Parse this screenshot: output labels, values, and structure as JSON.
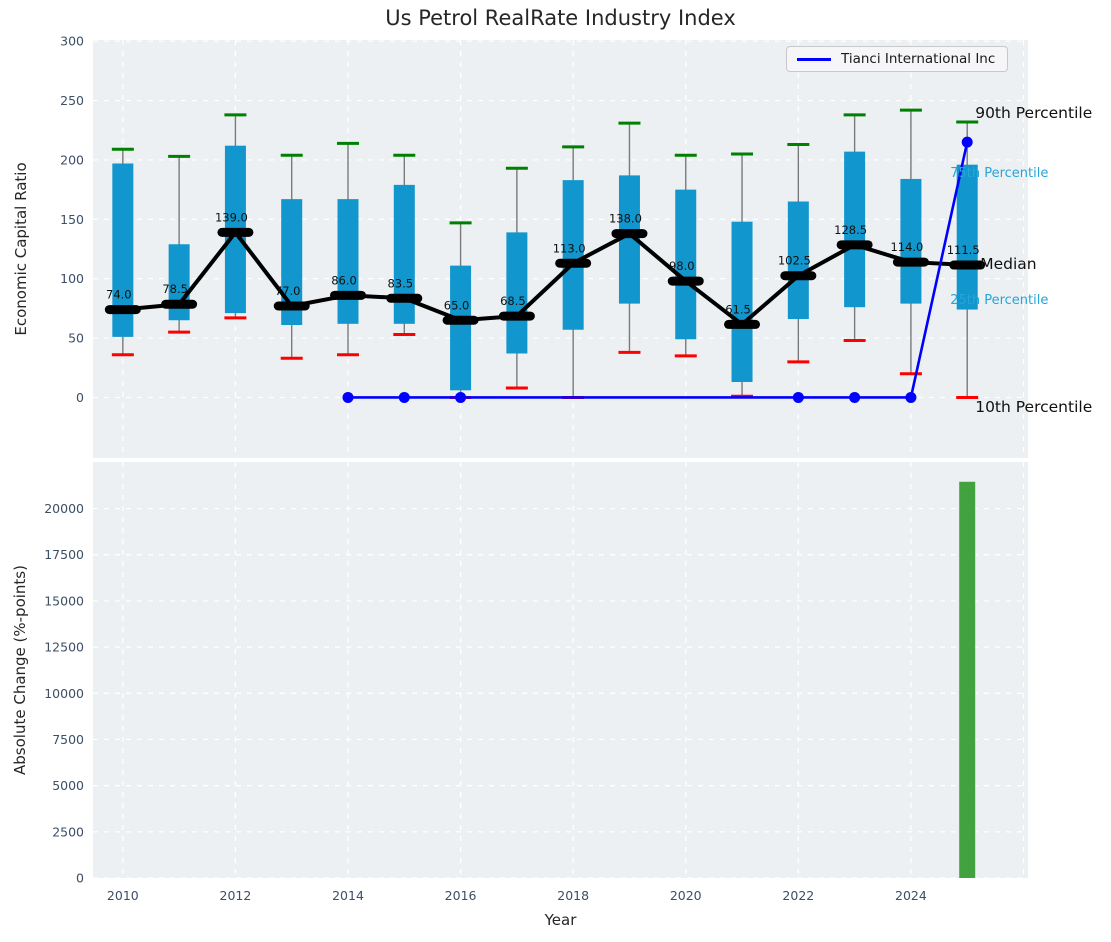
{
  "title": "Us Petrol RealRate Industry Index",
  "legend": {
    "series_label": "Tianci International Inc"
  },
  "axes": {
    "top_ylabel": "Economic Capital Ratio",
    "bottom_ylabel": "Absolute Change (%-points)",
    "xlabel": "Year"
  },
  "annotations": {
    "p90": "90th Percentile",
    "p75": "75th Percentile",
    "median": "Median",
    "p25": "25th Percentile",
    "p10": "10th Percentile"
  },
  "colors": {
    "box_fill": "#1196cd",
    "whisker": "#7a7a7a",
    "cap_high": "#008000",
    "cap_low": "#ff0000",
    "median_line": "#000000",
    "company_line": "#0000ff",
    "bar_fill": "#42a23f",
    "plot_bg": "#edf0f2",
    "grid": "#ffffff",
    "tick_label": "#3d4f66",
    "annotation_accent": "#27a5d8",
    "value_label": "#111111"
  },
  "chart_data": [
    {
      "type": "boxplot",
      "title": "Us Petrol RealRate Industry Index",
      "ylabel": "Economic Capital Ratio",
      "ylim": [
        -51,
        301
      ],
      "yticks": [
        0,
        50,
        100,
        150,
        200,
        250,
        300
      ],
      "grid": true,
      "legend_position": "upper right",
      "categories": [
        2010,
        2011,
        2012,
        2013,
        2014,
        2015,
        2016,
        2017,
        2018,
        2019,
        2020,
        2021,
        2022,
        2023,
        2024,
        2025
      ],
      "series": [
        {
          "name": "90th Percentile",
          "values": [
            209,
            203,
            238,
            204,
            214,
            204,
            147,
            193,
            211,
            231,
            204,
            205,
            213,
            238,
            242,
            232
          ]
        },
        {
          "name": "75th Percentile",
          "values": [
            197,
            129,
            212,
            167,
            167,
            179,
            111,
            139,
            183,
            187,
            175,
            148,
            165,
            207,
            184,
            196
          ]
        },
        {
          "name": "Median",
          "values": [
            74.0,
            78.5,
            139.0,
            77.0,
            86.0,
            83.5,
            65.0,
            68.5,
            113.0,
            138.0,
            98.0,
            61.5,
            102.5,
            128.5,
            114.0,
            111.5
          ]
        },
        {
          "name": "25th Percentile",
          "values": [
            51,
            65,
            71,
            61,
            62,
            62,
            6,
            37,
            57,
            79,
            49,
            13,
            66,
            76,
            79,
            74
          ]
        },
        {
          "name": "10th Percentile",
          "values": [
            36,
            55,
            67,
            33,
            36,
            53,
            0,
            8,
            0,
            38,
            35,
            1,
            30,
            48,
            20,
            0
          ]
        }
      ],
      "median_value_labels": [
        "74.0",
        "78.5",
        "139.0",
        "77.0",
        "86.0",
        "83.5",
        "65.0",
        "68.5",
        "113.0",
        "138.0",
        "98.0",
        "61.5",
        "102.5",
        "128.5",
        "114.0",
        "111.5"
      ],
      "company_line": {
        "name": "Tianci International Inc",
        "x": [
          2014,
          2015,
          2016,
          2022,
          2023,
          2024,
          2025
        ],
        "y": [
          0,
          0,
          0,
          0,
          0,
          0,
          215
        ]
      }
    },
    {
      "type": "bar",
      "xlabel": "Year",
      "ylabel": "Absolute Change (%-points)",
      "ylim": [
        0,
        22520
      ],
      "yticks": [
        0,
        2500,
        5000,
        7500,
        10000,
        12500,
        15000,
        17500,
        20000
      ],
      "xticks": [
        2010,
        2012,
        2014,
        2016,
        2018,
        2020,
        2022,
        2024
      ],
      "grid": true,
      "categories": [
        2025
      ],
      "values": [
        21450
      ]
    }
  ]
}
